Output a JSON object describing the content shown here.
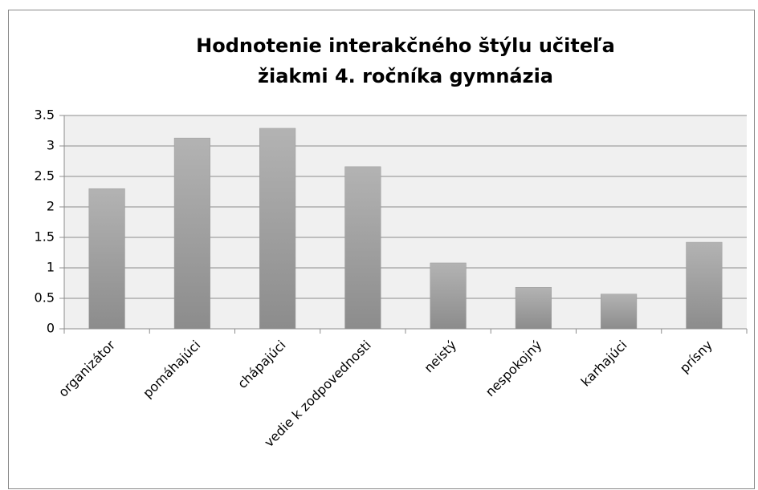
{
  "chart_data": {
    "type": "bar",
    "title": [
      "Hodnotenie interakčného štýlu učiteľa",
      "žiakmi 4. ročníka gymnázia"
    ],
    "categories": [
      "organizátor",
      "pomáhajúci",
      "chápajúci",
      "vedie k zodpovednosti",
      "neistý",
      "nespokojný",
      "karhajúci",
      "prísny"
    ],
    "values": [
      2.3,
      3.13,
      3.29,
      2.66,
      1.08,
      0.68,
      0.57,
      1.42
    ],
    "color": "#a6a6a6",
    "ylim": [
      0,
      3.5
    ],
    "yticks": [
      0,
      0.5,
      1,
      1.5,
      2,
      2.5,
      3,
      3.5
    ],
    "grid": true
  }
}
